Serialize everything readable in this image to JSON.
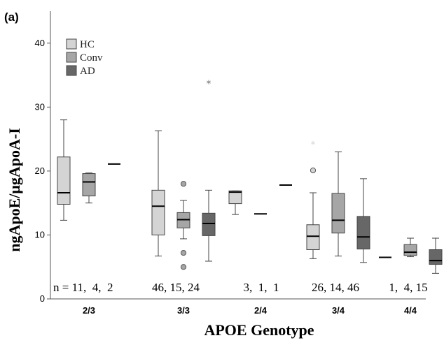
{
  "chart_data": {
    "type": "box",
    "panel_label": "(a)",
    "xlabel": "APOE Genotype",
    "ylabel": "ngApoE/μgApoA-I",
    "ylim": [
      0,
      45
    ],
    "yticks": [
      0,
      10,
      20,
      30,
      40
    ],
    "categories": [
      "2/3",
      "3/3",
      "2/4",
      "3/4",
      "4/4"
    ],
    "legend": {
      "position": "top-left",
      "entries": [
        {
          "name": "HC",
          "color": "#d4d4d4"
        },
        {
          "name": "Conv",
          "color": "#a6a6a6"
        },
        {
          "name": "AD",
          "color": "#676767"
        }
      ]
    },
    "n_labels": [
      "n = 11,  4,  2",
      "46, 15, 24",
      "3,  1,  1",
      "26, 14, 46",
      "1,  4, 15"
    ],
    "series": [
      {
        "name": "HC",
        "color": "#d4d4d4",
        "boxes": [
          {
            "min": 12.3,
            "q1": 14.8,
            "median": 16.6,
            "q3": 22.2,
            "max": 28.0,
            "outliers": [],
            "extremes": []
          },
          {
            "min": 6.7,
            "q1": 10.0,
            "median": 14.5,
            "q3": 17.0,
            "max": 26.3,
            "outliers": [],
            "extremes": []
          },
          {
            "min": 13.2,
            "q1": 14.9,
            "median": 16.7,
            "q3": 16.9,
            "max": 16.9,
            "outliers": [],
            "extremes": []
          },
          {
            "min": 6.3,
            "q1": 7.7,
            "median": 9.8,
            "q3": 11.6,
            "max": 16.6,
            "outliers": [
              20.1
            ],
            "extremes": [
              24.2
            ]
          },
          {
            "min": 6.5,
            "q1": 6.5,
            "median": 6.5,
            "q3": 6.5,
            "max": 6.5,
            "outliers": [],
            "extremes": []
          }
        ]
      },
      {
        "name": "Conv",
        "color": "#a6a6a6",
        "boxes": [
          {
            "min": 15.0,
            "q1": 16.1,
            "median": 18.3,
            "q3": 19.6,
            "max": 19.7,
            "outliers": [],
            "extremes": []
          },
          {
            "min": 9.4,
            "q1": 11.1,
            "median": 12.4,
            "q3": 13.5,
            "max": 15.4,
            "outliers": [
              18.0,
              7.2,
              5.0
            ],
            "extremes": []
          },
          {
            "min": 13.3,
            "q1": 13.3,
            "median": 13.3,
            "q3": 13.3,
            "max": 13.3,
            "outliers": [],
            "extremes": []
          },
          {
            "min": 6.7,
            "q1": 10.3,
            "median": 12.3,
            "q3": 16.5,
            "max": 23.0,
            "outliers": [],
            "extremes": []
          },
          {
            "min": 6.6,
            "q1": 6.8,
            "median": 7.3,
            "q3": 8.5,
            "max": 9.5,
            "outliers": [],
            "extremes": []
          }
        ]
      },
      {
        "name": "AD",
        "color": "#676767",
        "boxes": [
          {
            "min": 21.1,
            "q1": 21.1,
            "median": 21.1,
            "q3": 21.1,
            "max": 21.1,
            "outliers": [],
            "extremes": []
          },
          {
            "min": 5.9,
            "q1": 9.9,
            "median": 11.8,
            "q3": 13.4,
            "max": 17.0,
            "outliers": [],
            "extremes": [
              33.7
            ]
          },
          {
            "min": 17.8,
            "q1": 17.8,
            "median": 17.8,
            "q3": 17.8,
            "max": 17.8,
            "outliers": [],
            "extremes": []
          },
          {
            "min": 5.7,
            "q1": 7.8,
            "median": 9.7,
            "q3": 12.9,
            "max": 18.8,
            "outliers": [],
            "extremes": []
          },
          {
            "min": 4.0,
            "q1": 5.4,
            "median": 6.0,
            "q3": 7.7,
            "max": 9.5,
            "outliers": [],
            "extremes": []
          }
        ]
      }
    ]
  }
}
